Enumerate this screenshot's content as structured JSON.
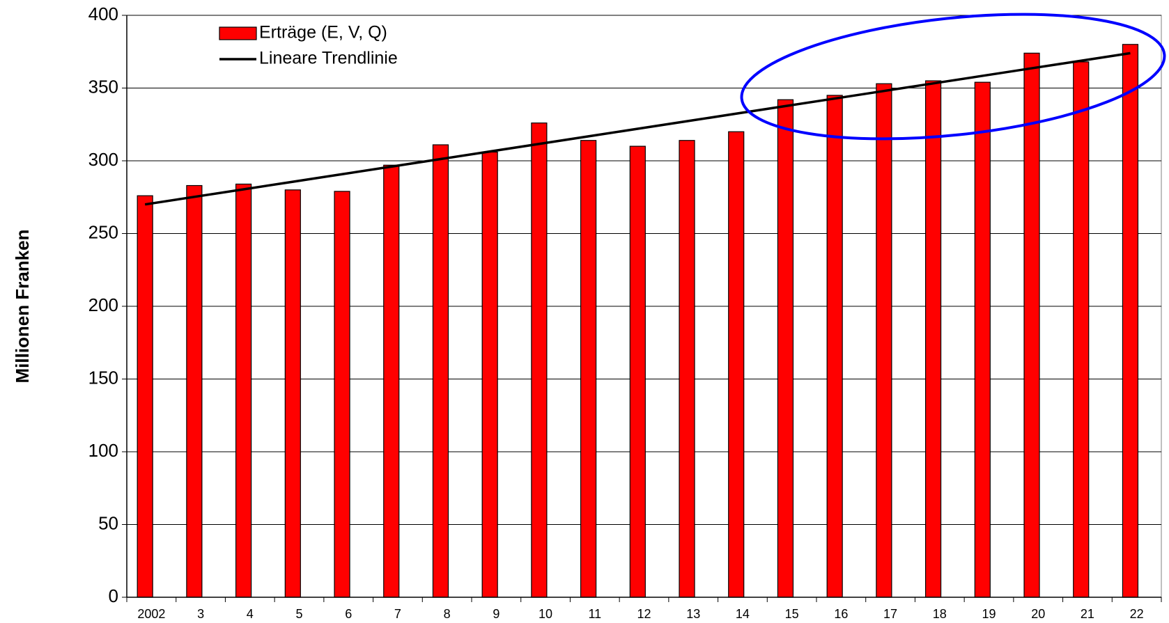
{
  "chart_data": {
    "type": "bar",
    "y_label": "Millionen Franken",
    "categories": [
      "2002",
      "3",
      "4",
      "5",
      "6",
      "7",
      "8",
      "9",
      "10",
      "11",
      "12",
      "13",
      "14",
      "15",
      "16",
      "17",
      "18",
      "19",
      "20",
      "21",
      "22"
    ],
    "series": [
      {
        "name": "Erträge (E, V, Q)",
        "color": "#ff0000",
        "type": "bar",
        "values": [
          276,
          283,
          284,
          280,
          279,
          297,
          311,
          306,
          326,
          314,
          310,
          314,
          320,
          342,
          345,
          353,
          355,
          354,
          374,
          368,
          380
        ]
      },
      {
        "name": "Lineare Trendlinie",
        "color": "#000000",
        "type": "line",
        "values": [
          270,
          275.2,
          280.4,
          285.6,
          290.8,
          296,
          301.2,
          306.4,
          311.6,
          316.8,
          322,
          327.2,
          332.4,
          337.6,
          342.8,
          348,
          353.2,
          358.4,
          363.6,
          368.8,
          374
        ]
      }
    ],
    "ylim": [
      0,
      400
    ],
    "yticks": [
      0,
      50,
      100,
      150,
      200,
      250,
      300,
      350,
      400
    ],
    "grid": true
  }
}
